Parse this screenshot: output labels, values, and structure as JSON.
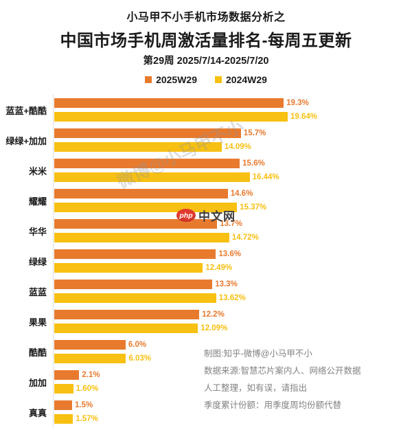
{
  "header": {
    "kicker": "小马甲不小手机市场数据分析之",
    "title": "中国市场手机周激活量排名-每周五更新",
    "subtitle": "第29周 2025/7/14-2025/7/20"
  },
  "legend": [
    {
      "label": "2025W29",
      "color": "#E87A2E"
    },
    {
      "label": "2024W29",
      "color": "#F7C012"
    }
  ],
  "chart_data": {
    "type": "bar",
    "orientation": "horizontal",
    "title": "中国市场手机周激活量排名-每周五更新",
    "categories": [
      "蓝蓝+酷酷",
      "绿绿+加加",
      "米米",
      "耀耀",
      "华华",
      "绿绿",
      "蓝蓝",
      "果果",
      "酷酷",
      "加加",
      "真真"
    ],
    "series": [
      {
        "name": "2025W29",
        "color": "#E87A2E",
        "values": [
          19.3,
          15.7,
          15.6,
          14.6,
          13.7,
          13.6,
          13.3,
          12.2,
          6.0,
          2.1,
          1.5
        ],
        "labels": [
          "19.3%",
          "15.7%",
          "15.6%",
          "14.6%",
          "13.7%",
          "13.6%",
          "13.3%",
          "12.2%",
          "6.0%",
          "2.1%",
          "1.5%"
        ]
      },
      {
        "name": "2024W29",
        "color": "#F7C012",
        "values": [
          19.64,
          14.09,
          16.44,
          15.37,
          14.72,
          12.49,
          13.62,
          12.09,
          6.03,
          1.6,
          1.57
        ],
        "labels": [
          "19.64%",
          "14.09%",
          "16.44%",
          "15.37%",
          "14.72%",
          "12.49%",
          "13.62%",
          "12.09%",
          "6.03%",
          "1.60%",
          "1.57%"
        ]
      }
    ],
    "value_suffix": "%",
    "xlim": [
      0,
      20
    ],
    "grid": false,
    "legend_position": "top"
  },
  "watermarks": {
    "diagonal": "微博@小马甲不小",
    "php_badge": "php",
    "php_site": "中文网"
  },
  "footer": {
    "lines": [
      "制图:知乎-微博@小马甲不小",
      "数据来源:智慧芯片案内人、网络公开数据",
      "人工整理，如有误，请指出",
      "季度累计份额：用季度周均份额代替"
    ]
  }
}
